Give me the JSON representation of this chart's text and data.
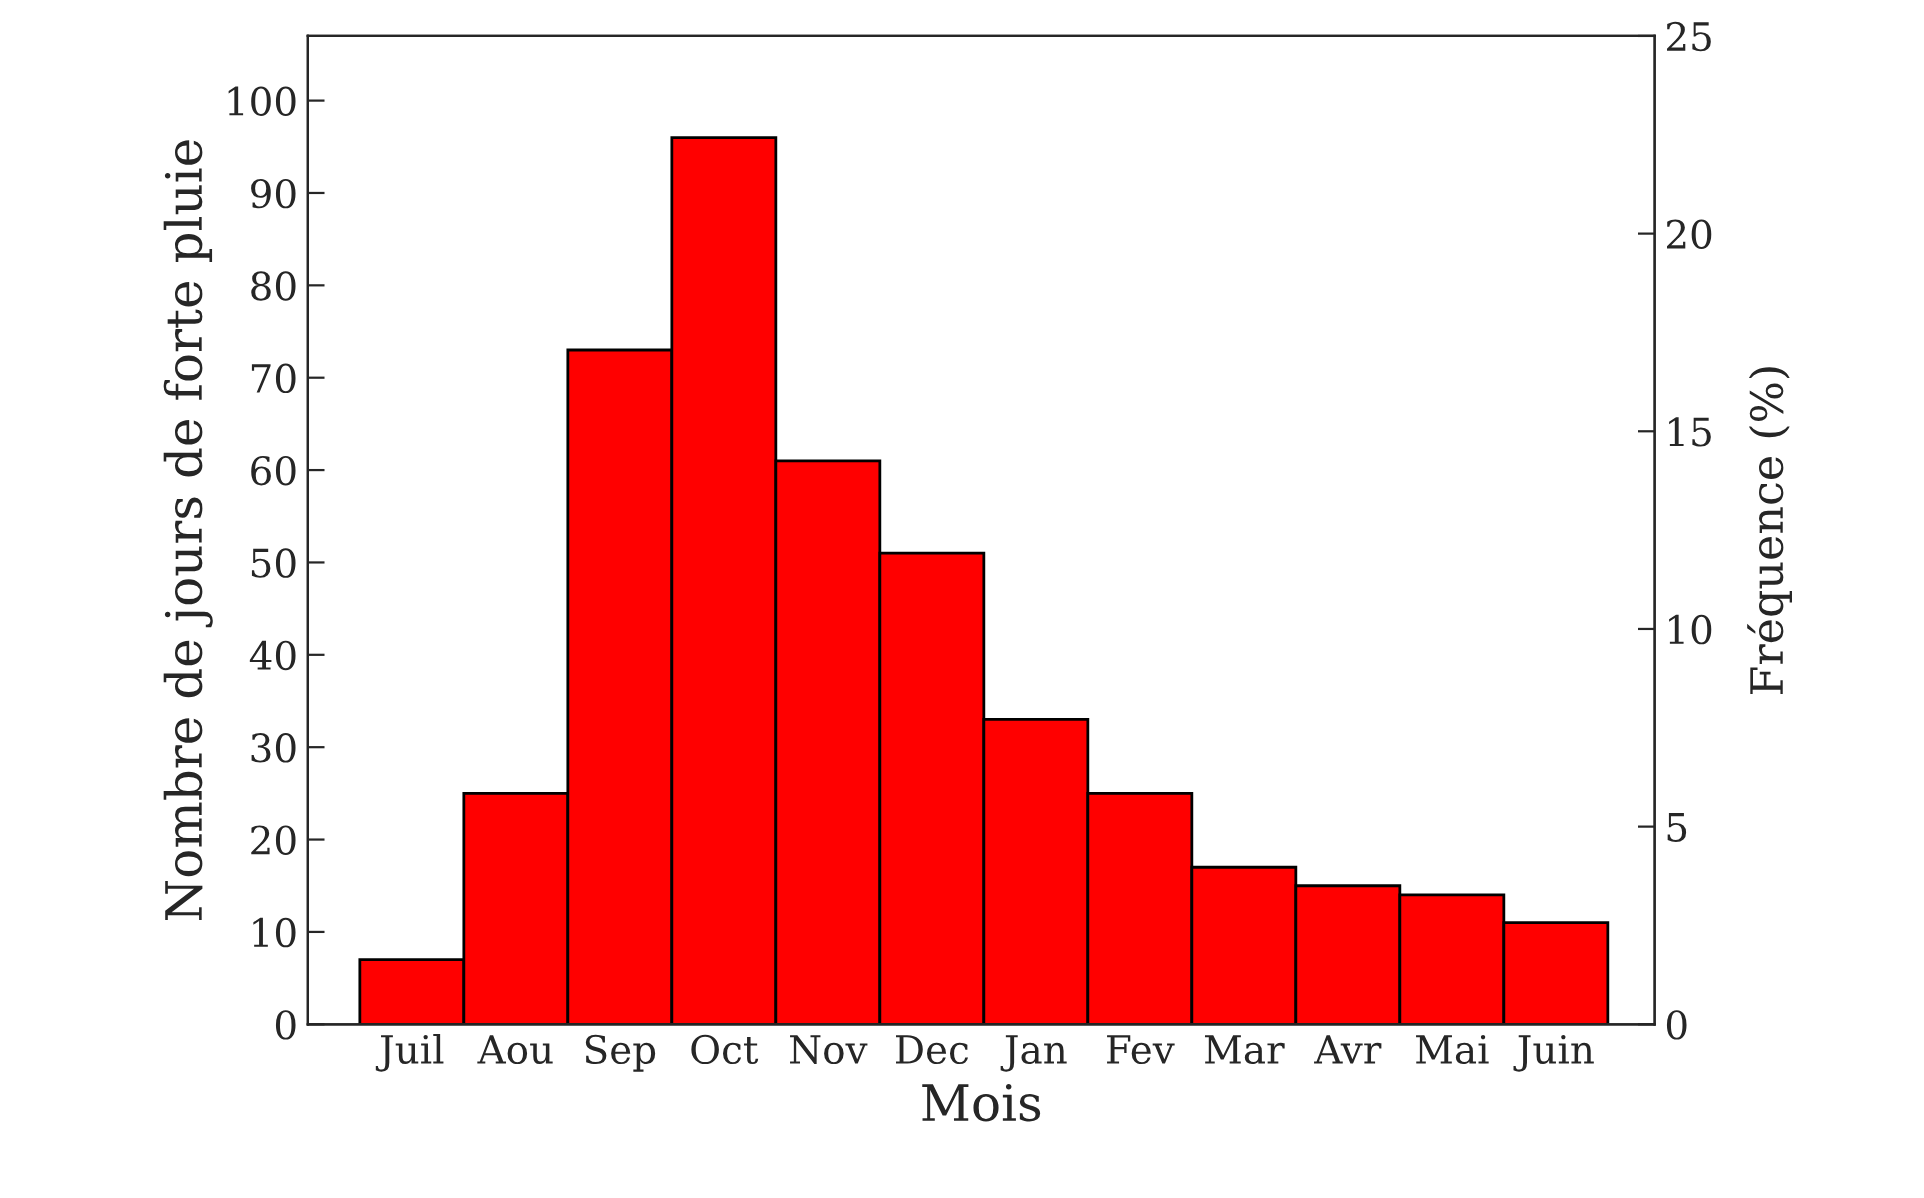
{
  "chart_data": {
    "type": "bar",
    "xlabel": "Mois",
    "ylabel": "Nombre de jours de forte pluie",
    "y2label": "Fréquence (%)",
    "categories": [
      "Juil",
      "Aou",
      "Sep",
      "Oct",
      "Nov",
      "Dec",
      "Jan",
      "Fev",
      "Mar",
      "Avr",
      "Mai",
      "Juin"
    ],
    "values": [
      7,
      25,
      73,
      96,
      61,
      51,
      33,
      25,
      17,
      15,
      14,
      11
    ],
    "color": "#ff0000",
    "ylim": [
      0,
      107
    ],
    "yticks": [
      0,
      10,
      20,
      30,
      40,
      50,
      60,
      70,
      80,
      90,
      100
    ],
    "y2lim": [
      0,
      25
    ],
    "y2ticks": [
      0,
      5,
      10,
      15,
      20,
      25
    ],
    "grid": false,
    "legend": false
  }
}
